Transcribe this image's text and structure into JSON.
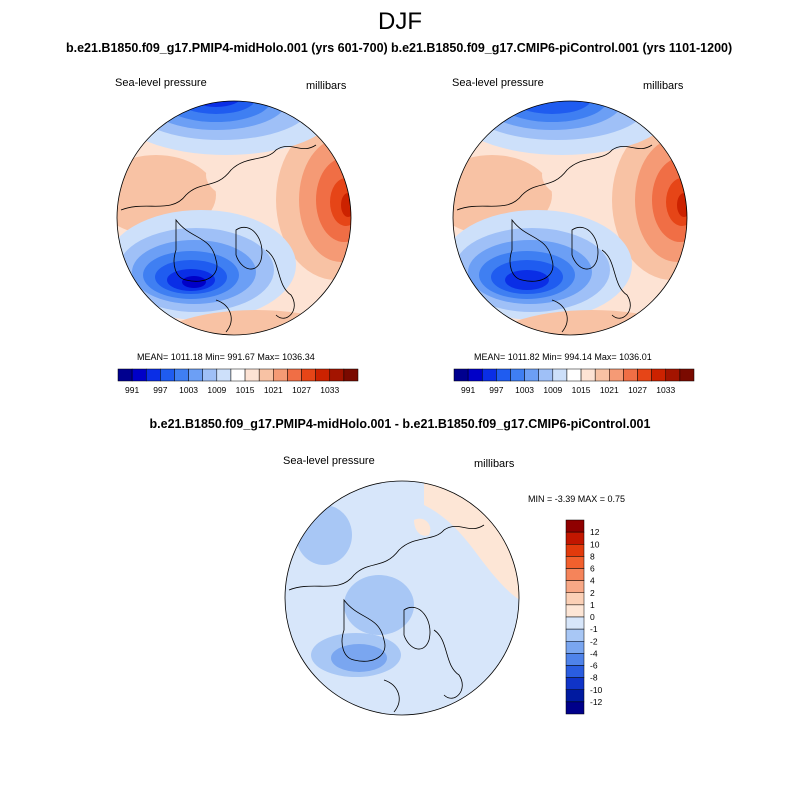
{
  "season": "DJF",
  "panels": [
    {
      "title": "b.e21.B1850.f09_g17.PMIP4-midHolo.001 (yrs 601-700)",
      "variable": "Sea-level pressure",
      "units": "millibars",
      "stats": "MEAN= 1011.18  Min= 991.67  Max= 1036.34"
    },
    {
      "title": "b.e21.B1850.f09_g17.CMIP6-piControl.001 (yrs 1101-1200)",
      "variable": "Sea-level pressure",
      "units": "millibars",
      "stats": "MEAN= 1011.82  Min= 994.14  Max= 1036.01"
    }
  ],
  "abs_colorbar": {
    "labels": [
      "991",
      "997",
      "1003",
      "1009",
      "1015",
      "1021",
      "1027",
      "1033"
    ],
    "colors": [
      "#00008f",
      "#0000c8",
      "#0a2ee6",
      "#1f5cf0",
      "#3f7ff2",
      "#6c9ff5",
      "#9fc0f7",
      "#cde0fa",
      "#ffffff",
      "#fde3d4",
      "#f8c2a4",
      "#f59a75",
      "#f06e45",
      "#e64517",
      "#cc2200",
      "#a31400",
      "#7a0a00"
    ]
  },
  "difference": {
    "title": "b.e21.B1850.f09_g17.PMIP4-midHolo.001 - b.e21.B1850.f09_g17.CMIP6-piControl.001",
    "variable": "Sea-level pressure",
    "units": "millibars",
    "minmax": "MIN =  -3.39 MAX =   0.75",
    "colorbar": {
      "labels": [
        "12",
        "10",
        "8",
        "6",
        "4",
        "2",
        "1",
        "0",
        "-1",
        "-2",
        "-4",
        "-6",
        "-8",
        "-10",
        "-12"
      ],
      "colors": [
        "#8f0000",
        "#c21600",
        "#e23a0c",
        "#f2602d",
        "#f5845a",
        "#f8a886",
        "#fbd0b6",
        "#fde6d6",
        "#d7e6fa",
        "#a8c7f5",
        "#7aa6f0",
        "#4f83ea",
        "#2a5de0",
        "#1034c8",
        "#001aa0",
        "#00008a"
      ]
    }
  }
}
